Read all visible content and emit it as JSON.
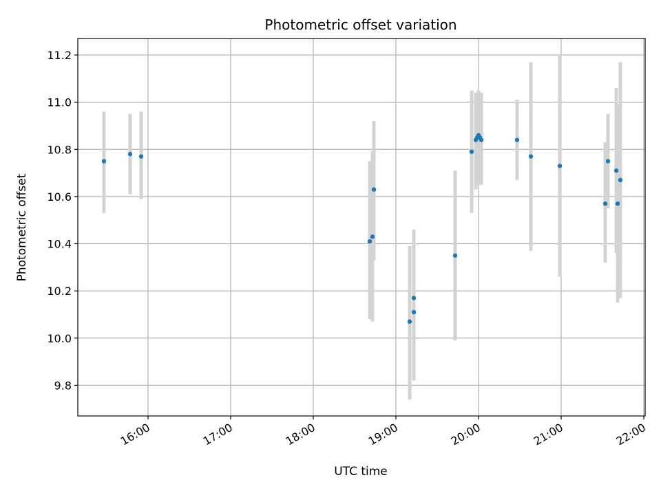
{
  "chart_data": {
    "type": "scatter",
    "title": "Photometric offset variation",
    "xlabel": "UTC time",
    "ylabel": "Photometric offset",
    "x_unit": "UTC time of day",
    "xlim": [
      "15:09",
      "22:01"
    ],
    "ylim": [
      9.67,
      11.27
    ],
    "grid": true,
    "x_ticks": [
      "16:00",
      "17:00",
      "18:00",
      "19:00",
      "20:00",
      "21:00",
      "22:00"
    ],
    "y_ticks": [
      "9.8",
      "10.0",
      "10.2",
      "10.4",
      "10.6",
      "10.8",
      "11.0",
      "11.2"
    ],
    "colors": {
      "point": "#1f77b4",
      "errorbar": "#d3d3d3",
      "grid": "#b0b0b0",
      "axes": "#000000"
    },
    "series": [
      {
        "points": [
          {
            "x": "15:28",
            "y": 10.75,
            "yerr_low": 10.53,
            "yerr_high": 10.96
          },
          {
            "x": "15:47",
            "y": 10.78,
            "yerr_low": 10.61,
            "yerr_high": 10.95
          },
          {
            "x": "15:55",
            "y": 10.77,
            "yerr_low": 10.59,
            "yerr_high": 10.96
          },
          {
            "x": "18:41",
            "y": 10.41,
            "yerr_low": 10.08,
            "yerr_high": 10.75
          },
          {
            "x": "18:43",
            "y": 10.43,
            "yerr_low": 10.07,
            "yerr_high": 10.79
          },
          {
            "x": "18:44",
            "y": 10.63,
            "yerr_low": 10.33,
            "yerr_high": 10.92
          },
          {
            "x": "19:10",
            "y": 10.07,
            "yerr_low": 9.74,
            "yerr_high": 10.39
          },
          {
            "x": "19:13",
            "y": 10.17,
            "yerr_low": 9.87,
            "yerr_high": 10.46
          },
          {
            "x": "19:13",
            "y": 10.11,
            "yerr_low": 9.82,
            "yerr_high": 10.4
          },
          {
            "x": "19:43",
            "y": 10.35,
            "yerr_low": 9.99,
            "yerr_high": 10.71
          },
          {
            "x": "19:55",
            "y": 10.79,
            "yerr_low": 10.53,
            "yerr_high": 11.05
          },
          {
            "x": "19:58",
            "y": 10.84,
            "yerr_low": 10.63,
            "yerr_high": 11.04
          },
          {
            "x": "19:59",
            "y": 10.85,
            "yerr_low": 10.65,
            "yerr_high": 11.04
          },
          {
            "x": "20:00",
            "y": 10.86,
            "yerr_low": 10.66,
            "yerr_high": 11.05
          },
          {
            "x": "20:01",
            "y": 10.85,
            "yerr_low": 10.65,
            "yerr_high": 11.04
          },
          {
            "x": "20:02",
            "y": 10.84,
            "yerr_low": 10.65,
            "yerr_high": 11.04
          },
          {
            "x": "20:28",
            "y": 10.84,
            "yerr_low": 10.67,
            "yerr_high": 11.01
          },
          {
            "x": "20:38",
            "y": 10.77,
            "yerr_low": 10.37,
            "yerr_high": 11.17
          },
          {
            "x": "20:59",
            "y": 10.73,
            "yerr_low": 10.26,
            "yerr_high": 11.2
          },
          {
            "x": "21:32",
            "y": 10.57,
            "yerr_low": 10.32,
            "yerr_high": 10.83
          },
          {
            "x": "21:34",
            "y": 10.75,
            "yerr_low": 10.55,
            "yerr_high": 10.95
          },
          {
            "x": "21:40",
            "y": 10.71,
            "yerr_low": 10.36,
            "yerr_high": 11.06
          },
          {
            "x": "21:41",
            "y": 10.57,
            "yerr_low": 10.15,
            "yerr_high": 10.99
          },
          {
            "x": "21:43",
            "y": 10.67,
            "yerr_low": 10.17,
            "yerr_high": 11.17
          }
        ]
      }
    ]
  }
}
